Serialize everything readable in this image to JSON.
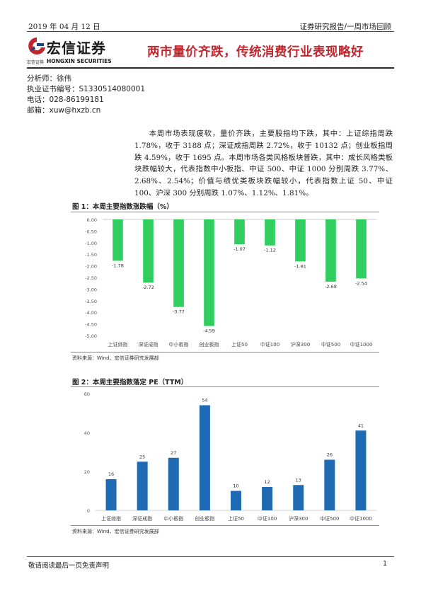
{
  "header": {
    "date": "2019 年 04 月 12 日",
    "report_type": "证券研究报告/一周市场回顾"
  },
  "logo": {
    "name": "宏信证券",
    "sub_cn": "宏信证券",
    "sub_en": "HONGXIN SECURITIES"
  },
  "title": "两市量价齐跌，传统消费行业表现略好",
  "analyst": {
    "name": "分析师：徐伟",
    "license": "执业证书编号：S1330514080001",
    "phone": "电话：028-86199181",
    "email": "邮箱：xuw@hxzb.cn"
  },
  "summary": "本周市场表现疲软，量价齐跌，主要股指均下跌，其中：上证综指周跌 1.78%，收于 3188 点；深证成指周跌 2.72%，收于 10132 点；创业板指周跌 4.59%，收于 1695 点。本周市场各类风格板块普跌，其中：成长风格类板块跌幅较大，代表指数中小板指、中证 500、中证 1000 分别周跌 3.77%、2.68%、2.54%；价值与绩优类板块跌幅较小，代表指数上证 50、中证 100、沪深 300 分别周跌 1.07%、1.12%、1.81%。",
  "figure1": {
    "title": "图 1：本周主要指数涨跌幅（%）",
    "source": "资料来源：Wind、宏信证券研究发展部"
  },
  "figure2": {
    "title": "图 2：本周主要指数落定 PE（TTM）",
    "source": "资料来源：Wind、宏信证券研究发展部"
  },
  "chart_data": [
    {
      "type": "bar",
      "categories": [
        "上证综指",
        "深证成指",
        "中小板指",
        "创业板指",
        "上证50",
        "中证100",
        "沪深300",
        "中证500",
        "中证1000"
      ],
      "values": [
        -1.78,
        -2.72,
        -3.77,
        -4.59,
        -1.07,
        -1.12,
        -1.81,
        -2.68,
        -2.54
      ],
      "data_labels": [
        "-1.78",
        "-2.72",
        "-3.77",
        "-4.59",
        "-1.07",
        "-1.12",
        "-1.81",
        "-2.68",
        "-2.54"
      ],
      "yticks": [
        "0.00",
        "-0.50",
        "-1.00",
        "-1.50",
        "-2.00",
        "-2.50",
        "-3.00",
        "-3.50",
        "-4.00",
        "-4.50",
        "-5.00"
      ],
      "ylim": [
        -5,
        0
      ],
      "color": "#2fce5e",
      "grid": false
    },
    {
      "type": "bar",
      "categories": [
        "上证综指",
        "深证成指",
        "中小板指",
        "创业板指",
        "上证50",
        "中证100",
        "沪深300",
        "中证500",
        "中证1000"
      ],
      "values": [
        16,
        25,
        27,
        54,
        10,
        12,
        13,
        26,
        41
      ],
      "data_labels": [
        "16",
        "25",
        "27",
        "54",
        "10",
        "12",
        "13",
        "26",
        "41"
      ],
      "yticks": [
        "0",
        "20",
        "40",
        "60"
      ],
      "ylim": [
        0,
        60
      ],
      "color": "#1f6ab3",
      "grid": false
    }
  ],
  "footer": {
    "disclaimer": "敬请阅读最后一页免责声明",
    "page": "1"
  }
}
